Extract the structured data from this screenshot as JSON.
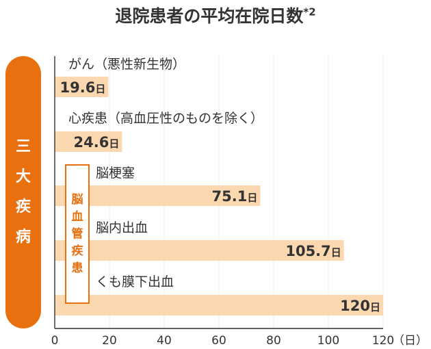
{
  "title": "退院患者の平均在院日数",
  "title_note": "*2",
  "group_label": [
    "三",
    "大",
    "疾",
    "病"
  ],
  "subgroup_label": [
    "脳",
    "血",
    "管",
    "疾",
    "患"
  ],
  "colors": {
    "accent": "#e8700f",
    "bar": "#fbd8b0",
    "text": "#333333",
    "grid": "#e8e8e8"
  },
  "chart_data": {
    "type": "bar",
    "orientation": "horizontal",
    "title": "退院患者の平均在院日数*2",
    "categories": [
      "がん（悪性新生物）",
      "心疾患（高血圧性のものを除く）",
      "脳梗塞",
      "脳内出血",
      "くも膜下出血"
    ],
    "values": [
      19.6,
      24.6,
      75.1,
      105.7,
      120
    ],
    "value_labels": [
      "19.6",
      "24.6",
      "75.1",
      "105.7",
      "120"
    ],
    "value_unit": "日",
    "xlim": [
      0,
      120
    ],
    "xticks": [
      0,
      20,
      40,
      60,
      80,
      100,
      120
    ],
    "x_unit_label": "（日）",
    "grid": true
  }
}
